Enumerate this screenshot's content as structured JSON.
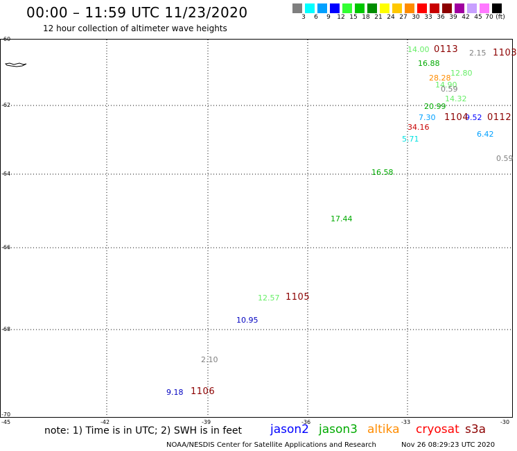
{
  "header": {
    "title": "00:00 – 11:59 UTC 11/23/2020",
    "subtitle": "12 hour collection of altimeter wave heights"
  },
  "legend": {
    "unit": "(ft)",
    "items": [
      {
        "color": "#7f7f7f",
        "label": "3"
      },
      {
        "color": "#00ffff",
        "label": "6"
      },
      {
        "color": "#00a0ff",
        "label": "9"
      },
      {
        "color": "#0000ff",
        "label": "12"
      },
      {
        "color": "#33ff33",
        "label": "15"
      },
      {
        "color": "#00c800",
        "label": "18"
      },
      {
        "color": "#008c00",
        "label": "21"
      },
      {
        "color": "#ffff00",
        "label": "24"
      },
      {
        "color": "#ffc800",
        "label": "27"
      },
      {
        "color": "#ff8c00",
        "label": "30"
      },
      {
        "color": "#ff0000",
        "label": "33"
      },
      {
        "color": "#c80000",
        "label": "36"
      },
      {
        "color": "#8c0000",
        "label": "39"
      },
      {
        "color": "#a000a0",
        "label": "42"
      },
      {
        "color": "#c8a0ff",
        "label": "45"
      },
      {
        "color": "#ff78ff",
        "label": "70"
      },
      {
        "color": "#000000",
        "label": ""
      }
    ]
  },
  "axes": {
    "lat_labels": [
      "-60",
      "-62",
      "-64",
      "-66",
      "-68",
      "-70"
    ],
    "lon_labels": [
      "-45",
      "-42",
      "-39",
      "-36",
      "-33",
      "-30"
    ]
  },
  "observations": [
    {
      "text": "14.00",
      "color": "#66ee66"
    },
    {
      "text": "2.15",
      "color": "#808080"
    },
    {
      "text": "16.88",
      "color": "#00aa00"
    },
    {
      "text": "12.80",
      "color": "#66ee66"
    },
    {
      "text": "28.28",
      "color": "#ff8c00"
    },
    {
      "text": "14.90",
      "color": "#66ee66"
    },
    {
      "text": "0.59",
      "color": "#808080"
    },
    {
      "text": "14.32",
      "color": "#66ee66"
    },
    {
      "text": "20.99",
      "color": "#00aa00"
    },
    {
      "text": "7.30",
      "color": "#00a0ff"
    },
    {
      "text": "9.52",
      "color": "#0000ff"
    },
    {
      "text": "34.16",
      "color": "#c80000"
    },
    {
      "text": "5.71",
      "color": "#00e0e0"
    },
    {
      "text": "6.42",
      "color": "#00a0ff"
    },
    {
      "text": "0.59",
      "color": "#808080"
    },
    {
      "text": "16.58",
      "color": "#00aa00"
    },
    {
      "text": "17.44",
      "color": "#00aa00"
    },
    {
      "text": "12.57",
      "color": "#66ee66"
    },
    {
      "text": "10.95",
      "color": "#0000c0"
    },
    {
      "text": "2.10",
      "color": "#808080"
    },
    {
      "text": "9.18",
      "color": "#0000c0"
    }
  ],
  "site_labels": [
    {
      "text": "0113",
      "color": "#8c0000"
    },
    {
      "text": "1103",
      "color": "#8c0000"
    },
    {
      "text": "1104",
      "color": "#8c0000"
    },
    {
      "text": "0112",
      "color": "#8c0000"
    },
    {
      "text": "1105",
      "color": "#8c0000"
    },
    {
      "text": "1106",
      "color": "#8c0000"
    }
  ],
  "note": "note: 1) Time is in UTC; 2) SWH is in feet",
  "satellites": [
    {
      "name": "jason2",
      "color": "#0000ff"
    },
    {
      "name": "jason3",
      "color": "#00aa00"
    },
    {
      "name": "altika",
      "color": "#ff8c00"
    },
    {
      "name": "cryosat",
      "color": "#ff0000"
    },
    {
      "name": "s3a",
      "color": "#8c0000"
    }
  ],
  "footer": {
    "org": "NOAA/NESDIS Center for Satellite Applications and Research",
    "timestamp": "Nov 26 08:29:23 UTC 2020"
  }
}
